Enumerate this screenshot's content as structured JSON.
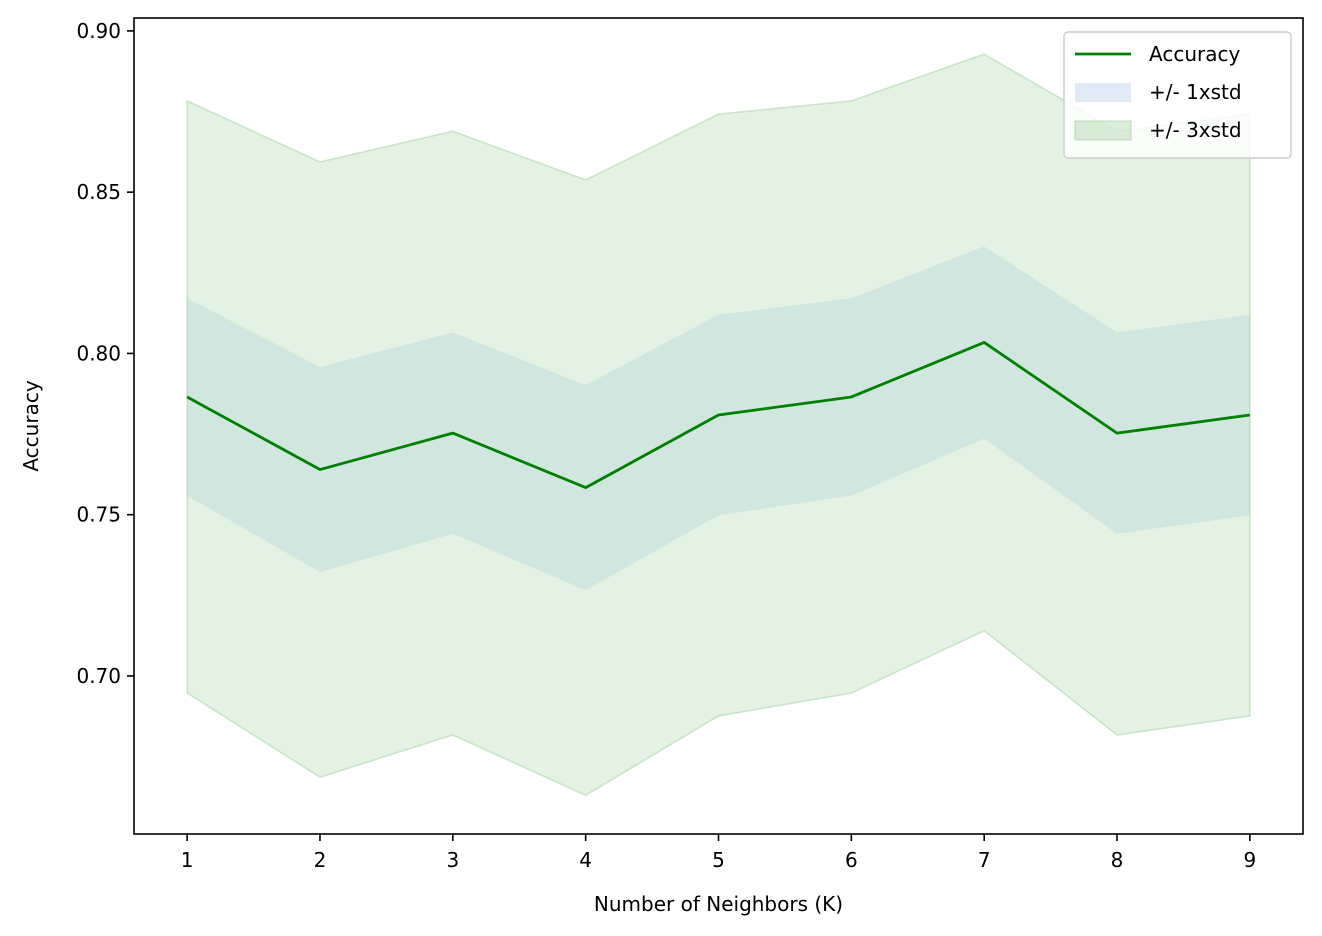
{
  "chart_data": {
    "type": "line",
    "title": "",
    "xlabel": "Number of Neighbors (K)",
    "ylabel": "Accuracy",
    "x": [
      1,
      2,
      3,
      4,
      5,
      6,
      7,
      8,
      9
    ],
    "xlim": [
      0.6,
      9.4
    ],
    "ylim": [
      0.651,
      0.904
    ],
    "xticks": [
      1,
      2,
      3,
      4,
      5,
      6,
      7,
      8,
      9
    ],
    "xtick_labels": [
      "1",
      "2",
      "3",
      "4",
      "5",
      "6",
      "7",
      "8",
      "9"
    ],
    "yticks": [
      0.7,
      0.75,
      0.8,
      0.85,
      0.9
    ],
    "ytick_labels": [
      "0.70",
      "0.75",
      "0.80",
      "0.85",
      "0.90"
    ],
    "grid": false,
    "legend_position": "top-right",
    "series": [
      {
        "name": "Accuracy",
        "kind": "line",
        "color": "#008000",
        "values": [
          0.7865,
          0.764,
          0.7753,
          0.7584,
          0.7809,
          0.7865,
          0.8034,
          0.7753,
          0.7809
        ]
      },
      {
        "name": "+/- 1xstd",
        "kind": "band",
        "color": "#a8c8e8",
        "lower": [
          0.7559,
          0.7322,
          0.7441,
          0.7266,
          0.7498,
          0.7559,
          0.7736,
          0.7441,
          0.7498
        ],
        "upper": [
          0.8171,
          0.7958,
          0.8065,
          0.7902,
          0.812,
          0.8171,
          0.8332,
          0.8065,
          0.812
        ]
      },
      {
        "name": "+/- 3xstd",
        "kind": "band",
        "color": "#90c890",
        "lower": [
          0.6947,
          0.6686,
          0.6817,
          0.663,
          0.6876,
          0.6947,
          0.714,
          0.6817,
          0.6876
        ],
        "upper": [
          0.8783,
          0.8594,
          0.8689,
          0.8538,
          0.8742,
          0.8783,
          0.8928,
          0.8689,
          0.8742
        ]
      }
    ]
  }
}
